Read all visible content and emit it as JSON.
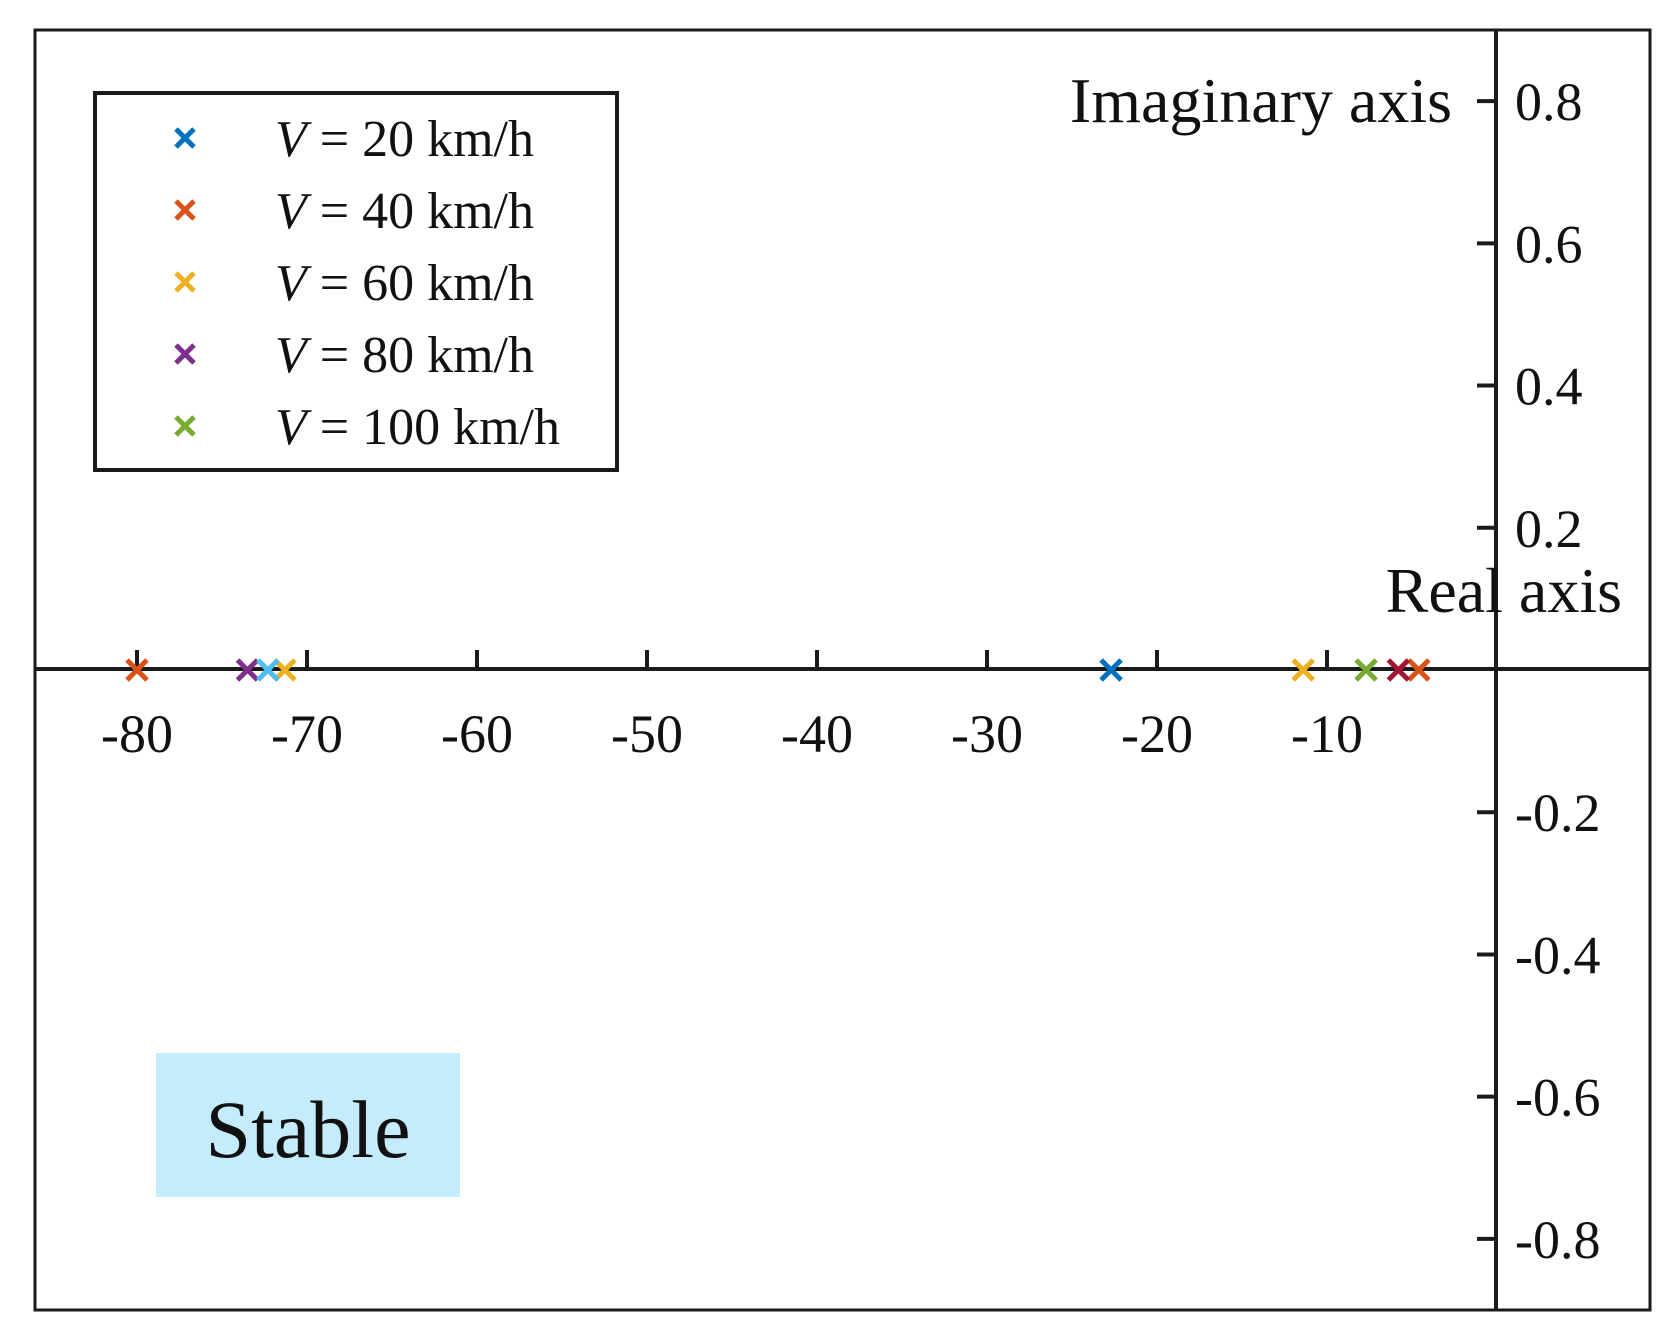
{
  "chart_data": {
    "type": "scatter",
    "title": "",
    "xlabel": "Real axis",
    "ylabel": "Imaginary axis",
    "xlim": [
      -86,
      9
    ],
    "ylim": [
      -0.9,
      0.9
    ],
    "x_ticks": [
      -80,
      -70,
      -60,
      -50,
      -40,
      -30,
      -20,
      -10
    ],
    "x_tick_labels": [
      "-80",
      "-70",
      "-60",
      "-50",
      "-40",
      "-30",
      "-20",
      "-10"
    ],
    "y_ticks": [
      0.8,
      0.6,
      0.4,
      0.2,
      -0.2,
      -0.4,
      -0.6,
      -0.8
    ],
    "y_tick_labels": [
      "0.8",
      "0.6",
      "0.4",
      "0.2",
      "-0.2",
      "-0.4",
      "-0.6",
      "-0.8"
    ],
    "grid": false,
    "legend_position": "top-left",
    "series": [
      {
        "name": "V = 20 km/h",
        "legend_var": "V",
        "legend_rest": " = 20 km/h",
        "color": "#0072BD",
        "points": [
          [
            -22.7,
            0
          ]
        ]
      },
      {
        "name": "V = 40 km/h",
        "legend_var": "V",
        "legend_rest": " = 40 km/h",
        "color": "#D95319",
        "points": [
          [
            -80.0,
            0
          ],
          [
            -4.6,
            0
          ]
        ]
      },
      {
        "name": "V = 60 km/h",
        "legend_var": "V",
        "legend_rest": " = 60 km/h",
        "color": "#EDB120",
        "points": [
          [
            -71.3,
            0
          ],
          [
            -11.4,
            0
          ]
        ]
      },
      {
        "name": "V = 80 km/h",
        "legend_var": "V",
        "legend_rest": " = 80 km/h",
        "color": "#7E2F8E",
        "points": [
          [
            -73.5,
            0
          ]
        ]
      },
      {
        "name": "V = 100 km/h",
        "legend_var": "V",
        "legend_rest": " = 100 km/h",
        "color": "#77AC30",
        "points": [
          [
            -7.7,
            0
          ]
        ]
      }
    ],
    "extra_points": [
      {
        "color": "#4DBEEE",
        "points": [
          [
            -72.3,
            0
          ]
        ]
      },
      {
        "color": "#A2142F",
        "points": [
          [
            -5.8,
            0
          ]
        ]
      }
    ],
    "annotations": [
      {
        "text": "Stable",
        "background": "#C4ECFC"
      }
    ]
  }
}
